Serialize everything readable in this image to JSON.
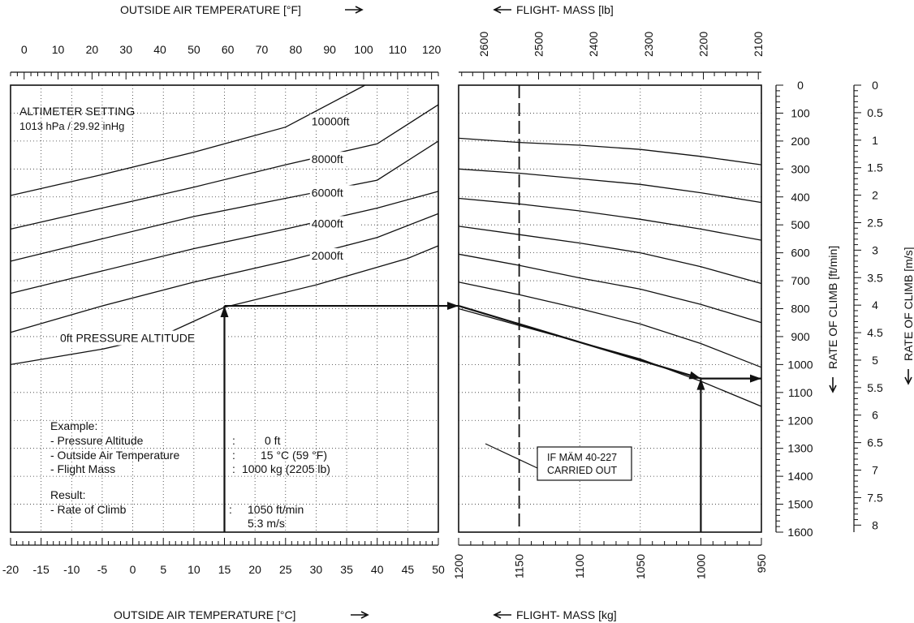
{
  "chart_data": {
    "type": "line",
    "titles": {
      "oat_f": "OUTSIDE AIR TEMPERATURE [°F]",
      "oat_c": "OUTSIDE AIR TEMPERATURE [°C]",
      "mass_lb": "FLIGHT- MASS [lb]",
      "mass_kg": "FLIGHT- MASS [kg]",
      "roc_ftmin": "RATE OF CLIMB [ft/min]",
      "roc_ms": "RATE OF CLIMB [m/s]"
    },
    "axes": {
      "oat_c": {
        "range": [
          -20,
          50
        ],
        "ticks": [
          "-20",
          "-15",
          "-10",
          "-5",
          "0",
          "5",
          "10",
          "15",
          "20",
          "25",
          "30",
          "35",
          "40",
          "45",
          "50"
        ]
      },
      "oat_f": {
        "ticks": [
          "0",
          "10",
          "20",
          "30",
          "40",
          "50",
          "60",
          "70",
          "80",
          "90",
          "100",
          "110",
          "120"
        ]
      },
      "mass_kg": {
        "range": [
          1200,
          950
        ],
        "ticks": [
          "1200",
          "1150",
          "1100",
          "1050",
          "1000",
          "950"
        ]
      },
      "mass_lb": {
        "ticks": [
          "2600",
          "2500",
          "2400",
          "2300",
          "2200",
          "2100"
        ]
      },
      "roc_ftmin": {
        "range": [
          0,
          1600
        ],
        "ticks": [
          "0",
          "100",
          "200",
          "300",
          "400",
          "500",
          "600",
          "700",
          "800",
          "900",
          "1000",
          "1100",
          "1200",
          "1300",
          "1400",
          "1500",
          "1600"
        ]
      },
      "roc_ms": {
        "ticks": [
          "0",
          "0.5",
          "1",
          "1.5",
          "2",
          "2.5",
          "3",
          "3.5",
          "4",
          "4.5",
          "5",
          "5.5",
          "6",
          "6.5",
          "7",
          "7.5",
          "8"
        ]
      }
    },
    "annotations": {
      "altimeter_1": "ALTIMETER SETTING",
      "altimeter_2": "1013 hPa / 29.92 inHg",
      "mam_1": "IF MÄM 40-227",
      "mam_2": "CARRIED OUT",
      "example_title": "Example:",
      "example_rows": [
        {
          "label": "- Pressure Altitude",
          "colon": ":",
          "value": "0 ft"
        },
        {
          "label": "- Outside Air Temperature",
          "colon": ":",
          "value": "15 °C (59 °F)"
        },
        {
          "label": "- Flight Mass",
          "colon": ":",
          "value": "1000 kg (2205 lb)"
        }
      ],
      "result_title": "Result:",
      "result_label": "- Rate of Climb",
      "result_colon": ":",
      "result_value_1": "1050 ft/min",
      "result_value_2": "5.3 m/s"
    },
    "altitude_series": [
      {
        "name": "0ft PRESSURE ALTITUDE",
        "label_at_c": 20,
        "points": [
          [
            -20,
            1000
          ],
          [
            -5,
            945
          ],
          [
            5,
            895
          ],
          [
            15,
            795
          ],
          [
            30,
            715
          ],
          [
            45,
            620
          ],
          [
            50,
            575
          ]
        ]
      },
      {
        "name": "2000ft",
        "label_at_c": 25,
        "points": [
          [
            -20,
            885
          ],
          [
            -5,
            790
          ],
          [
            10,
            705
          ],
          [
            25,
            630
          ],
          [
            40,
            545
          ],
          [
            50,
            460
          ]
        ]
      },
      {
        "name": "4000ft",
        "label_at_c": 25,
        "points": [
          [
            -20,
            745
          ],
          [
            -5,
            665
          ],
          [
            10,
            585
          ],
          [
            25,
            515
          ],
          [
            40,
            440
          ],
          [
            50,
            380
          ]
        ]
      },
      {
        "name": "6000ft",
        "label_at_c": 25,
        "points": [
          [
            -20,
            630
          ],
          [
            -5,
            550
          ],
          [
            10,
            470
          ],
          [
            25,
            405
          ],
          [
            40,
            340
          ],
          [
            50,
            200
          ]
        ]
      },
      {
        "name": "8000ft",
        "label_at_c": 25,
        "points": [
          [
            -20,
            515
          ],
          [
            -5,
            440
          ],
          [
            10,
            365
          ],
          [
            25,
            285
          ],
          [
            40,
            210
          ],
          [
            50,
            70
          ]
        ]
      },
      {
        "name": "10000ft",
        "label_at_c": 25,
        "points": [
          [
            -20,
            395
          ],
          [
            -5,
            320
          ],
          [
            10,
            240
          ],
          [
            25,
            150
          ],
          [
            38,
            0
          ]
        ]
      }
    ],
    "mass_lines": [
      [
        [
          1200,
          190
        ],
        [
          1150,
          205
        ],
        [
          1100,
          215
        ],
        [
          1050,
          230
        ],
        [
          1000,
          255
        ],
        [
          950,
          285
        ]
      ],
      [
        [
          1200,
          300
        ],
        [
          1150,
          315
        ],
        [
          1100,
          335
        ],
        [
          1050,
          355
        ],
        [
          1000,
          385
        ],
        [
          950,
          420
        ]
      ],
      [
        [
          1200,
          405
        ],
        [
          1150,
          425
        ],
        [
          1100,
          450
        ],
        [
          1050,
          480
        ],
        [
          1000,
          515
        ],
        [
          950,
          555
        ]
      ],
      [
        [
          1200,
          505
        ],
        [
          1150,
          535
        ],
        [
          1100,
          565
        ],
        [
          1050,
          600
        ],
        [
          1000,
          650
        ],
        [
          950,
          710
        ]
      ],
      [
        [
          1200,
          605
        ],
        [
          1150,
          645
        ],
        [
          1100,
          690
        ],
        [
          1050,
          730
        ],
        [
          1000,
          785
        ],
        [
          950,
          850
        ]
      ],
      [
        [
          1200,
          705
        ],
        [
          1150,
          750
        ],
        [
          1100,
          800
        ],
        [
          1050,
          855
        ],
        [
          1000,
          925
        ],
        [
          950,
          1010
        ]
      ],
      [
        [
          1200,
          800
        ],
        [
          1150,
          860
        ],
        [
          1100,
          920
        ],
        [
          1050,
          980
        ],
        [
          1000,
          1060
        ],
        [
          950,
          1150
        ]
      ]
    ],
    "example_path": {
      "oat_c": 15,
      "pressure_altitude_ft": 0,
      "roc_at_ref": 790,
      "mass_kg": 1000,
      "roc_result_ftmin": 1050,
      "mam_mass_kg": 1150
    }
  }
}
